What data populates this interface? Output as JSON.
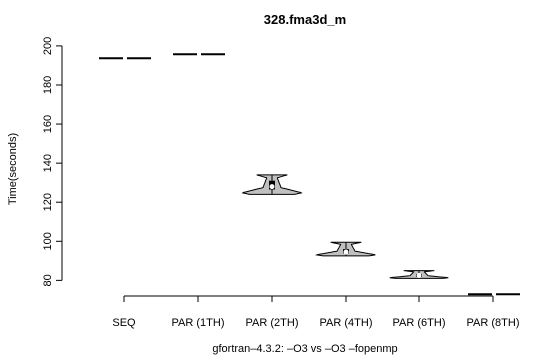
{
  "chart_data": {
    "type": "violin",
    "title": "328.fma3d_m",
    "xlabel": "gfortran–4.3.2: –O3 vs –O3 –fopenmp",
    "ylabel": "Time(seconds)",
    "ylim": [
      72,
      202
    ],
    "yticks": [
      80,
      100,
      120,
      140,
      160,
      180,
      200
    ],
    "categories": [
      "SEQ",
      "PAR (1TH)",
      "PAR (2TH)",
      "PAR (4TH)",
      "PAR (6TH)",
      "PAR (8TH)"
    ],
    "series": [
      {
        "category": "SEQ",
        "min": 193.6,
        "max": 193.9,
        "median": 193.7,
        "q1": 193.6,
        "q3": 193.8
      },
      {
        "category": "PAR (1TH)",
        "min": 195.6,
        "max": 195.9,
        "median": 195.7,
        "q1": 195.6,
        "q3": 195.8
      },
      {
        "category": "PAR (2TH)",
        "min": 124.0,
        "max": 134.0,
        "median": 128.0,
        "q1": 126.5,
        "q3": 131.0
      },
      {
        "category": "PAR (4TH)",
        "min": 92.5,
        "max": 99.5,
        "median": 94.5,
        "q1": 93.8,
        "q3": 96.0
      },
      {
        "category": "PAR (6TH)",
        "min": 81.0,
        "max": 85.0,
        "median": 82.5,
        "q1": 81.8,
        "q3": 83.2
      },
      {
        "category": "PAR (8TH)",
        "min": 72.8,
        "max": 73.0,
        "median": 72.9,
        "q1": 72.8,
        "q3": 73.0
      }
    ],
    "grid": false,
    "legend": "none",
    "colors": {
      "violin_fill": "#c0c0c0",
      "line": "#000000",
      "median_point": "#ffffff"
    }
  }
}
